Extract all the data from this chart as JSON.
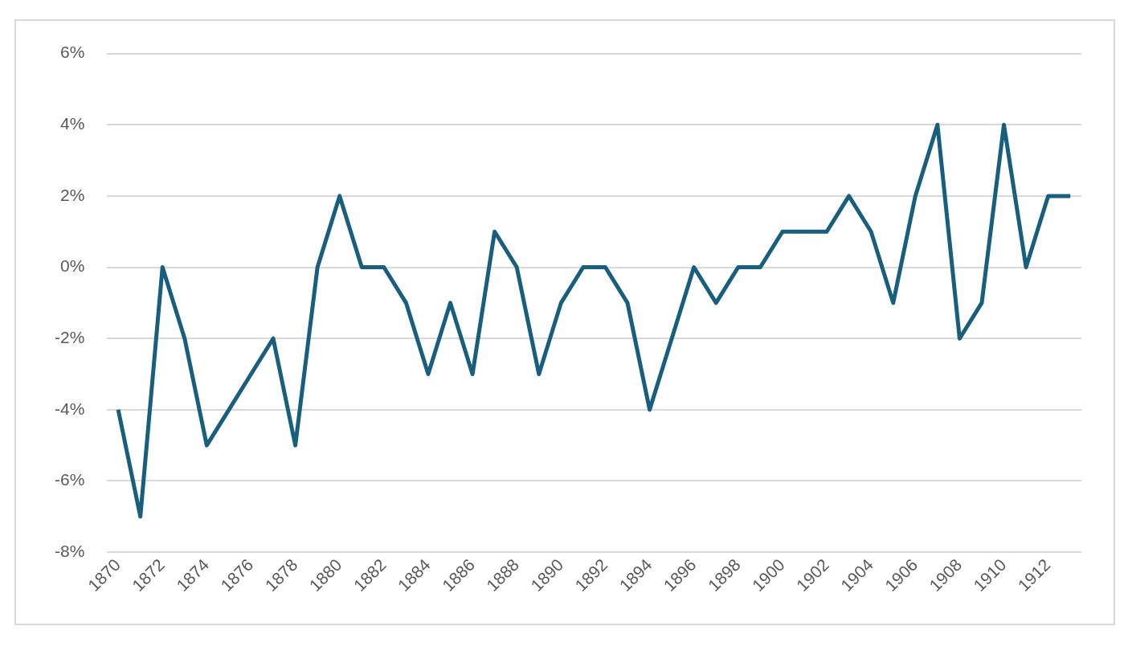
{
  "chart_data": {
    "type": "line",
    "categories": [
      "1870",
      null,
      "1872",
      null,
      "1874",
      null,
      "1876",
      null,
      "1878",
      null,
      "1880",
      null,
      "1882",
      null,
      "1884",
      null,
      "1886",
      null,
      "1888",
      null,
      "1890",
      null,
      "1892",
      null,
      "1894",
      null,
      "1896",
      null,
      "1898",
      null,
      "1900",
      null,
      "1902",
      null,
      "1904",
      null,
      "1906",
      null,
      "1908",
      null,
      "1910",
      null,
      "1912",
      null
    ],
    "series": [
      {
        "color": "#175e7f",
        "values": [
          -4,
          -7,
          0,
          -2,
          -5,
          -4,
          -3,
          -2,
          -5,
          0,
          2,
          0,
          0,
          -1,
          -3,
          -1,
          -3,
          1,
          0,
          -3,
          -1,
          0,
          0,
          -1,
          -4,
          -2,
          0,
          -1,
          0,
          0,
          1,
          1,
          1,
          2,
          1,
          -1,
          2,
          4,
          -2,
          -1,
          4,
          0,
          2,
          2
        ]
      }
    ],
    "ylim": [
      -8,
      6
    ],
    "yticks": [
      {
        "value": -8,
        "label": "-8%"
      },
      {
        "value": -6,
        "label": "-6%"
      },
      {
        "value": -4,
        "label": "-4%"
      },
      {
        "value": -2,
        "label": "-2%"
      },
      {
        "value": 0,
        "label": "0%"
      },
      {
        "value": 2,
        "label": "2%"
      },
      {
        "value": 4,
        "label": "4%"
      },
      {
        "value": 6,
        "label": "6%"
      }
    ],
    "grid": "y",
    "legend": false,
    "marker": "none",
    "line_style": "solid"
  }
}
